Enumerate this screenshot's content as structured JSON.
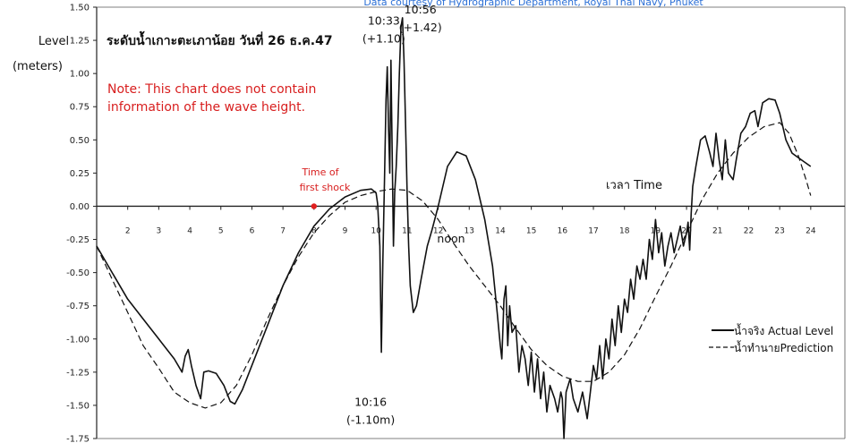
{
  "chart_data": {
    "type": "line",
    "title": "ระดับน้ำเกาะตะเภาน้อย วันที่ 26 ธ.ค.47",
    "top_text": "Data courtesy of Hydrographic Department, Royal Thai Navy, Phuket",
    "ylabel_line1": "Level",
    "ylabel_line2": "(meters)",
    "xlabel": "เวลา Time",
    "ylim": [
      -1.75,
      1.5
    ],
    "xlim": [
      1.0,
      25.1
    ],
    "y_ticks": [
      "1.50",
      "1.25",
      "1.00",
      "0.75",
      "0.50",
      "0.25",
      "0.00",
      "-0.25",
      "-0.50",
      "-0.75",
      "-1.00",
      "-1.25",
      "-1.50",
      "-1.75"
    ],
    "x_ticks": [
      "2",
      "3",
      "4",
      "5",
      "6",
      "7",
      "8",
      "9",
      "10",
      "11",
      "12",
      "13",
      "14",
      "15",
      "16",
      "17",
      "18",
      "19",
      "20",
      "21",
      "22",
      "23",
      "24"
    ],
    "note": "Note: This chart does not contain information of the wave height.",
    "note_line1": "Note: This chart does not contain",
    "note_line2": "information of the wave height.",
    "noon_label": "noon",
    "first_shock": {
      "x": 8.0,
      "y": 0.0,
      "label_line1": "Time of",
      "label_line2": "first shock",
      "color": "#e02020"
    },
    "annotations": [
      {
        "label_time": "10:33",
        "label_value": "(+1.10)",
        "x": 10.48,
        "y": 1.1
      },
      {
        "label_time": "10:56",
        "label_value": "(+1.42)",
        "x": 10.85,
        "y": 1.42
      },
      {
        "label_time": "10:16",
        "label_value": "(-1.10m)",
        "x": 10.17,
        "y": -1.1
      }
    ],
    "legend_position": "right",
    "series": [
      {
        "name": "น้ำจริง Actual Level",
        "style": "solid",
        "points": [
          [
            1.0,
            -0.3
          ],
          [
            1.5,
            -0.5
          ],
          [
            2.0,
            -0.7
          ],
          [
            2.5,
            -0.85
          ],
          [
            3.0,
            -1.0
          ],
          [
            3.5,
            -1.15
          ],
          [
            3.75,
            -1.25
          ],
          [
            3.85,
            -1.13
          ],
          [
            3.95,
            -1.08
          ],
          [
            4.05,
            -1.2
          ],
          [
            4.2,
            -1.35
          ],
          [
            4.35,
            -1.45
          ],
          [
            4.45,
            -1.25
          ],
          [
            4.6,
            -1.24
          ],
          [
            4.85,
            -1.26
          ],
          [
            5.1,
            -1.35
          ],
          [
            5.3,
            -1.47
          ],
          [
            5.45,
            -1.49
          ],
          [
            5.7,
            -1.38
          ],
          [
            6.0,
            -1.2
          ],
          [
            6.5,
            -0.9
          ],
          [
            7.0,
            -0.6
          ],
          [
            7.5,
            -0.35
          ],
          [
            8.0,
            -0.15
          ],
          [
            8.5,
            -0.02
          ],
          [
            9.0,
            0.07
          ],
          [
            9.5,
            0.12
          ],
          [
            9.85,
            0.13
          ],
          [
            10.0,
            0.1
          ],
          [
            10.05,
            0.02
          ],
          [
            10.12,
            -0.3
          ],
          [
            10.17,
            -1.1
          ],
          [
            10.22,
            -0.4
          ],
          [
            10.27,
            0.2
          ],
          [
            10.32,
            0.8
          ],
          [
            10.36,
            1.05
          ],
          [
            10.4,
            0.6
          ],
          [
            10.44,
            0.25
          ],
          [
            10.48,
            1.1
          ],
          [
            10.52,
            0.4
          ],
          [
            10.56,
            -0.3
          ],
          [
            10.6,
            0.1
          ],
          [
            10.65,
            0.3
          ],
          [
            10.7,
            0.6
          ],
          [
            10.75,
            1.0
          ],
          [
            10.8,
            1.35
          ],
          [
            10.85,
            1.42
          ],
          [
            10.9,
            1.1
          ],
          [
            10.95,
            0.6
          ],
          [
            11.0,
            0.1
          ],
          [
            11.05,
            -0.3
          ],
          [
            11.1,
            -0.6
          ],
          [
            11.2,
            -0.8
          ],
          [
            11.3,
            -0.75
          ],
          [
            11.45,
            -0.55
          ],
          [
            11.65,
            -0.3
          ],
          [
            11.8,
            -0.18
          ],
          [
            12.0,
            0.0
          ],
          [
            12.3,
            0.3
          ],
          [
            12.6,
            0.41
          ],
          [
            12.9,
            0.38
          ],
          [
            13.2,
            0.2
          ],
          [
            13.5,
            -0.1
          ],
          [
            13.75,
            -0.45
          ],
          [
            13.9,
            -0.8
          ],
          [
            14.0,
            -1.05
          ],
          [
            14.05,
            -1.15
          ],
          [
            14.12,
            -0.7
          ],
          [
            14.18,
            -0.6
          ],
          [
            14.24,
            -1.05
          ],
          [
            14.3,
            -0.75
          ],
          [
            14.38,
            -0.95
          ],
          [
            14.5,
            -0.9
          ],
          [
            14.6,
            -1.25
          ],
          [
            14.7,
            -1.05
          ],
          [
            14.8,
            -1.15
          ],
          [
            14.9,
            -1.35
          ],
          [
            15.0,
            -1.1
          ],
          [
            15.1,
            -1.4
          ],
          [
            15.2,
            -1.15
          ],
          [
            15.3,
            -1.45
          ],
          [
            15.4,
            -1.25
          ],
          [
            15.5,
            -1.55
          ],
          [
            15.6,
            -1.35
          ],
          [
            15.75,
            -1.45
          ],
          [
            15.85,
            -1.55
          ],
          [
            15.95,
            -1.4
          ],
          [
            16.0,
            -1.45
          ],
          [
            16.05,
            -1.75
          ],
          [
            16.12,
            -1.4
          ],
          [
            16.25,
            -1.3
          ],
          [
            16.35,
            -1.45
          ],
          [
            16.5,
            -1.55
          ],
          [
            16.65,
            -1.4
          ],
          [
            16.8,
            -1.6
          ],
          [
            16.9,
            -1.4
          ],
          [
            17.0,
            -1.2
          ],
          [
            17.1,
            -1.3
          ],
          [
            17.2,
            -1.05
          ],
          [
            17.3,
            -1.3
          ],
          [
            17.4,
            -1.0
          ],
          [
            17.5,
            -1.15
          ],
          [
            17.6,
            -0.85
          ],
          [
            17.7,
            -1.05
          ],
          [
            17.8,
            -0.75
          ],
          [
            17.9,
            -0.95
          ],
          [
            18.0,
            -0.7
          ],
          [
            18.1,
            -0.8
          ],
          [
            18.2,
            -0.55
          ],
          [
            18.3,
            -0.7
          ],
          [
            18.4,
            -0.45
          ],
          [
            18.5,
            -0.55
          ],
          [
            18.6,
            -0.4
          ],
          [
            18.7,
            -0.55
          ],
          [
            18.8,
            -0.25
          ],
          [
            18.9,
            -0.4
          ],
          [
            19.0,
            -0.1
          ],
          [
            19.1,
            -0.35
          ],
          [
            19.2,
            -0.2
          ],
          [
            19.3,
            -0.45
          ],
          [
            19.4,
            -0.3
          ],
          [
            19.5,
            -0.2
          ],
          [
            19.6,
            -0.35
          ],
          [
            19.7,
            -0.25
          ],
          [
            19.8,
            -0.15
          ],
          [
            19.9,
            -0.3
          ],
          [
            20.0,
            -0.2
          ],
          [
            20.05,
            -0.12
          ],
          [
            20.1,
            -0.33
          ],
          [
            20.15,
            -0.05
          ],
          [
            20.2,
            0.15
          ],
          [
            20.3,
            0.3
          ],
          [
            20.45,
            0.5
          ],
          [
            20.6,
            0.53
          ],
          [
            20.75,
            0.4
          ],
          [
            20.85,
            0.3
          ],
          [
            20.95,
            0.55
          ],
          [
            21.05,
            0.35
          ],
          [
            21.15,
            0.2
          ],
          [
            21.25,
            0.5
          ],
          [
            21.35,
            0.25
          ],
          [
            21.5,
            0.2
          ],
          [
            21.6,
            0.35
          ],
          [
            21.75,
            0.55
          ],
          [
            21.9,
            0.6
          ],
          [
            22.05,
            0.7
          ],
          [
            22.2,
            0.72
          ],
          [
            22.3,
            0.6
          ],
          [
            22.45,
            0.78
          ],
          [
            22.65,
            0.81
          ],
          [
            22.85,
            0.8
          ],
          [
            23.0,
            0.7
          ],
          [
            23.2,
            0.5
          ],
          [
            23.4,
            0.4
          ],
          [
            23.7,
            0.35
          ],
          [
            24.0,
            0.3
          ]
        ]
      },
      {
        "name": "น้ำทำนายPrediction",
        "style": "dashed",
        "points": [
          [
            1.0,
            -0.3
          ],
          [
            1.5,
            -0.55
          ],
          [
            2.0,
            -0.8
          ],
          [
            2.5,
            -1.05
          ],
          [
            3.0,
            -1.22
          ],
          [
            3.5,
            -1.4
          ],
          [
            4.0,
            -1.48
          ],
          [
            4.5,
            -1.52
          ],
          [
            5.0,
            -1.48
          ],
          [
            5.5,
            -1.35
          ],
          [
            6.0,
            -1.12
          ],
          [
            6.5,
            -0.85
          ],
          [
            7.0,
            -0.6
          ],
          [
            7.5,
            -0.38
          ],
          [
            8.0,
            -0.2
          ],
          [
            8.5,
            -0.07
          ],
          [
            9.0,
            0.03
          ],
          [
            9.5,
            0.08
          ],
          [
            10.0,
            0.11
          ],
          [
            10.5,
            0.13
          ],
          [
            11.0,
            0.12
          ],
          [
            11.5,
            0.04
          ],
          [
            12.0,
            -0.1
          ],
          [
            12.5,
            -0.28
          ],
          [
            13.0,
            -0.45
          ],
          [
            13.5,
            -0.6
          ],
          [
            14.0,
            -0.75
          ],
          [
            14.5,
            -0.92
          ],
          [
            15.0,
            -1.08
          ],
          [
            15.5,
            -1.2
          ],
          [
            16.0,
            -1.28
          ],
          [
            16.5,
            -1.32
          ],
          [
            17.0,
            -1.32
          ],
          [
            17.5,
            -1.25
          ],
          [
            18.0,
            -1.12
          ],
          [
            18.5,
            -0.92
          ],
          [
            19.0,
            -0.68
          ],
          [
            19.5,
            -0.45
          ],
          [
            20.0,
            -0.2
          ],
          [
            20.5,
            0.05
          ],
          [
            21.0,
            0.25
          ],
          [
            21.5,
            0.4
          ],
          [
            22.0,
            0.52
          ],
          [
            22.5,
            0.6
          ],
          [
            23.0,
            0.63
          ],
          [
            23.3,
            0.55
          ],
          [
            23.6,
            0.38
          ],
          [
            23.85,
            0.2
          ],
          [
            24.0,
            0.08
          ]
        ]
      }
    ]
  }
}
